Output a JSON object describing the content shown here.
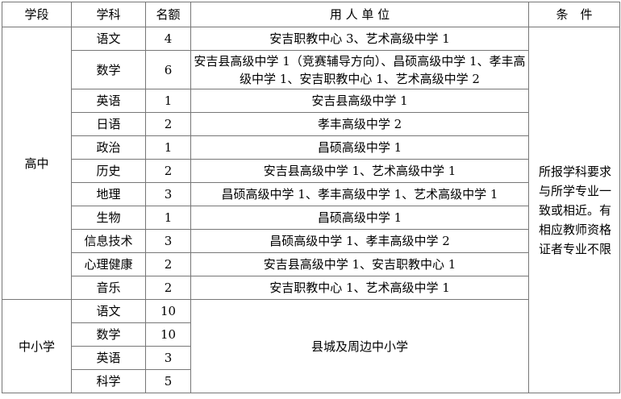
{
  "headers": [
    "学段",
    "学科",
    "名额",
    "用 人 单 位",
    "条　件"
  ],
  "groups": [
    {
      "stage": "高中",
      "condition": "所报学科要求与所学专业一致或相近。有相应教师资格证者专业不限",
      "rows": [
        {
          "subject": "语文",
          "count": "4",
          "units": "安吉职教中心 3、艺术高级中学 1"
        },
        {
          "subject": "数学",
          "count": "6",
          "units": "安吉县高级中学 1（竞赛辅导方向）、昌硕高级中学 1、孝丰高级中学 1、安吉职教中心 1、艺术高级中学 2"
        },
        {
          "subject": "英语",
          "count": "1",
          "units": "安吉县高级中学 1"
        },
        {
          "subject": "日语",
          "count": "2",
          "units": "孝丰高级中学 2"
        },
        {
          "subject": "政治",
          "count": "1",
          "units": "昌硕高级中学 1"
        },
        {
          "subject": "历史",
          "count": "2",
          "units": "安吉县高级中学 1、艺术高级中学 1"
        },
        {
          "subject": "地理",
          "count": "3",
          "units": "昌硕高级中学 1、孝丰高级中学 1、艺术高级中学 1"
        },
        {
          "subject": "生物",
          "count": "1",
          "units": "昌硕高级中学 1"
        },
        {
          "subject": "信息技术",
          "count": "3",
          "units": "昌硕高级中学 1、孝丰高级中学 2"
        },
        {
          "subject": "心理健康",
          "count": "2",
          "units": "安吉县高级中学 1、安吉职教中心 1"
        },
        {
          "subject": "音乐",
          "count": "2",
          "units": "安吉职教中心 1、艺术高级中学 1"
        }
      ]
    },
    {
      "stage": "中小学",
      "units": "县城及周边中小学",
      "rows": [
        {
          "subject": "语文",
          "count": "10"
        },
        {
          "subject": "数学",
          "count": "10"
        },
        {
          "subject": "英语",
          "count": "3"
        },
        {
          "subject": "科学",
          "count": "5"
        }
      ]
    }
  ]
}
